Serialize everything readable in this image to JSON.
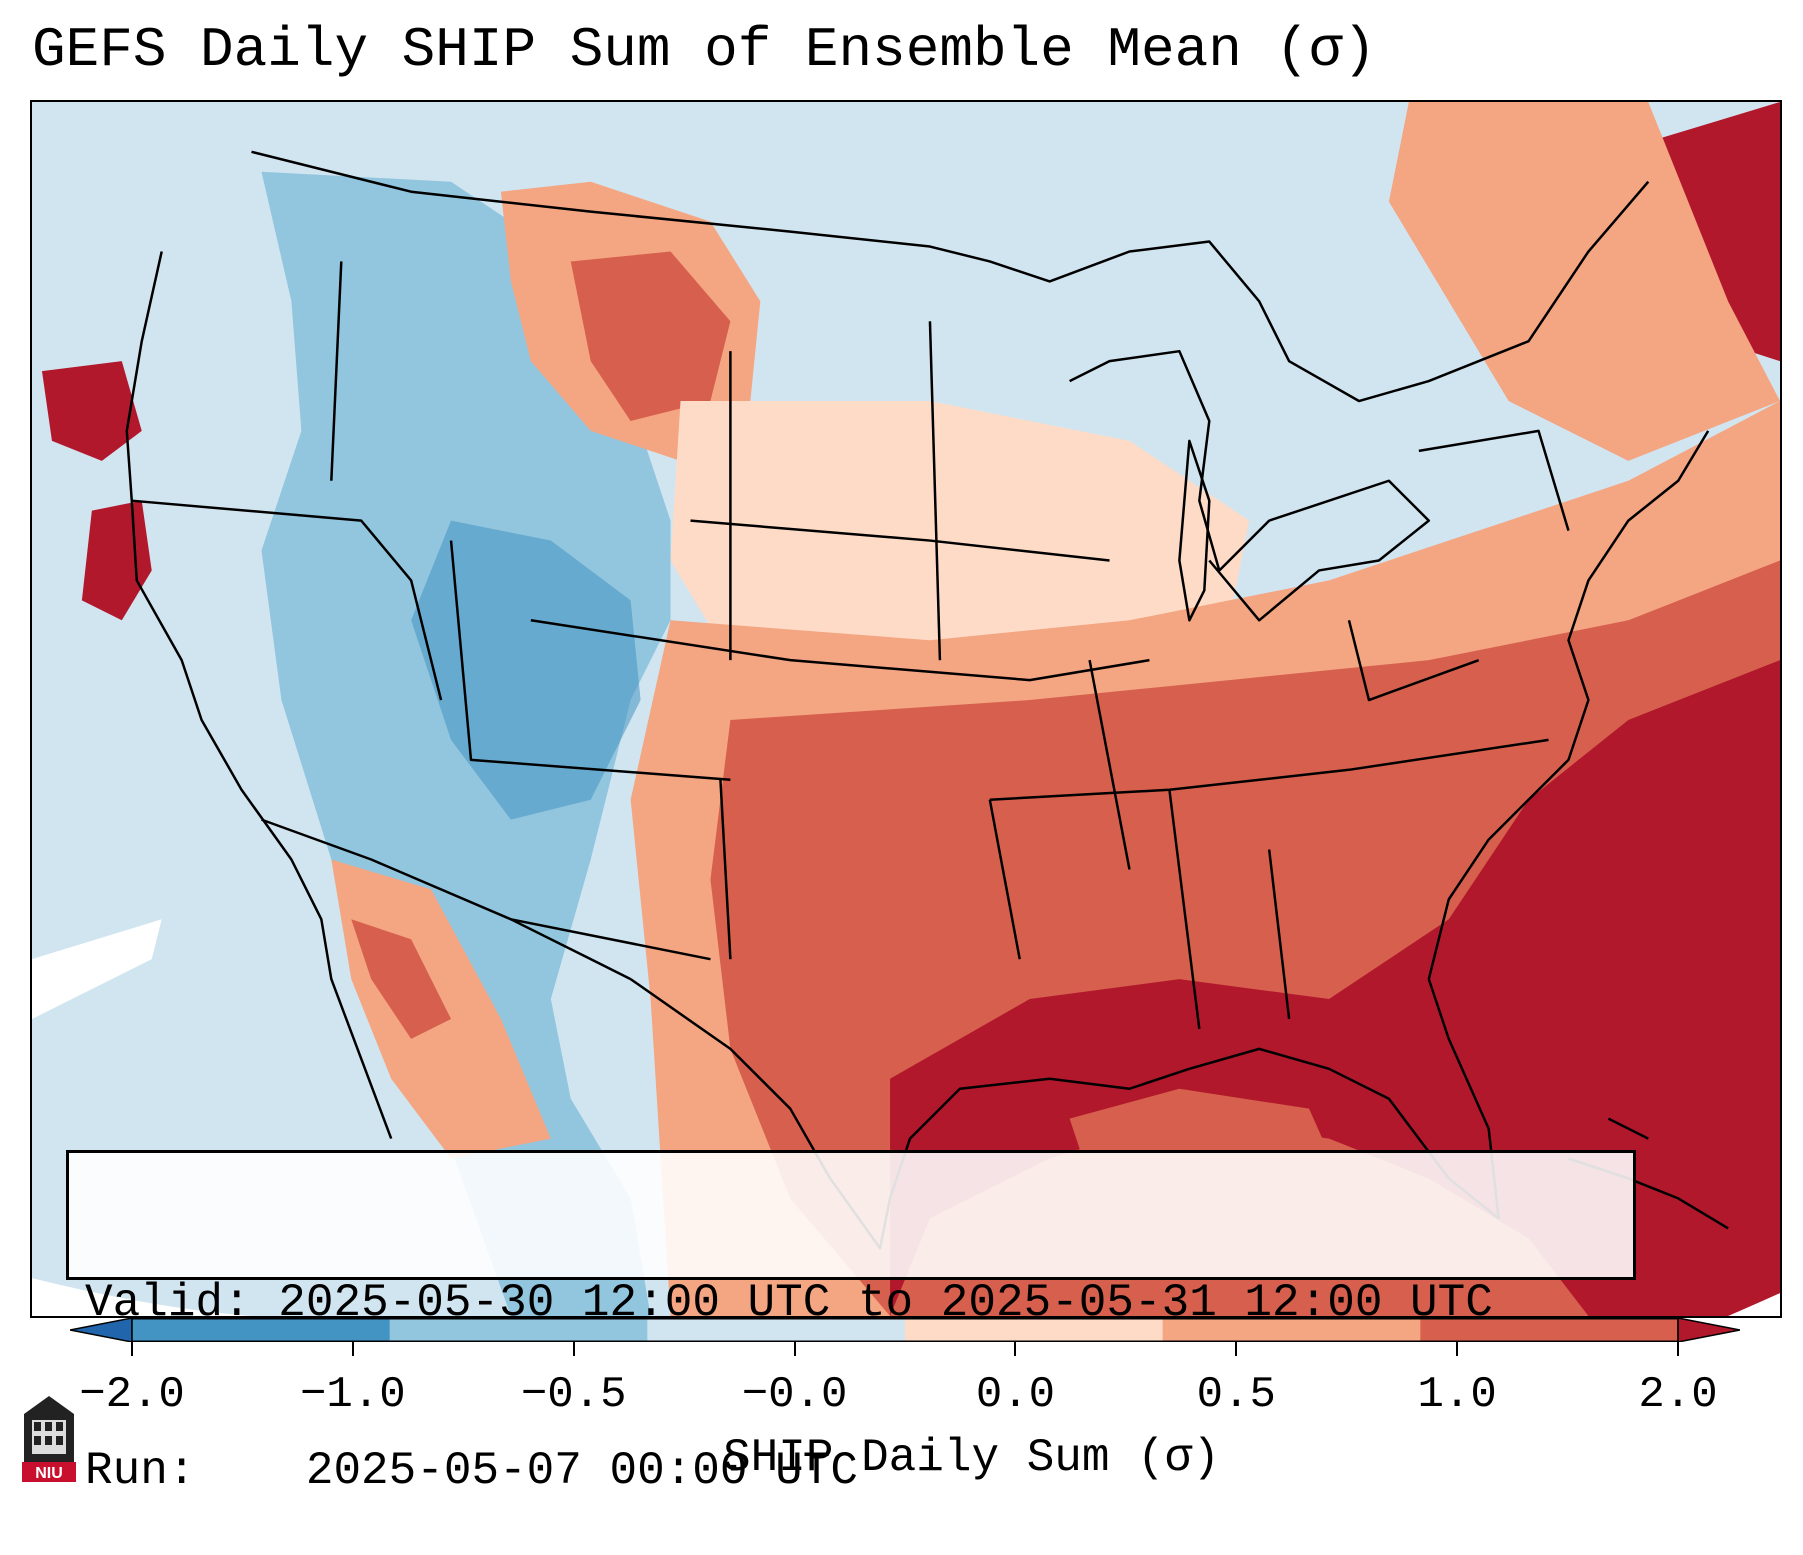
{
  "title": "GEFS Daily SHIP Sum of Ensemble Mean (σ)",
  "info": {
    "valid_label": "Valid:",
    "valid_value": "2025-05-30 12:00 UTC to 2025-05-31 12:00 UTC",
    "run_label": "Run:",
    "run_value": "2025-05-07 00:00 UTC"
  },
  "colorbar": {
    "label": "SHIP Daily Sum (σ)",
    "ticks": [
      "−2.0",
      "−1.0",
      "−0.5",
      "−0.0",
      "0.0",
      "0.5",
      "1.0",
      "2.0"
    ],
    "colors": [
      "#2166ac",
      "#4393c3",
      "#92c5de",
      "#d1e5f0",
      "#fddbc7",
      "#f4a582",
      "#d6604d",
      "#b2182b"
    ],
    "extend": "both"
  },
  "logo": {
    "text": "NIU",
    "icon": "niu-logo-icon"
  },
  "map": {
    "projection": "lambert-conformal",
    "region": "contiguous-united-states",
    "colors": {
      "ocean_low": "#d1e5f0",
      "neg_light": "#92c5de",
      "neg_mid": "#4393c3",
      "pos_light": "#fddbc7",
      "pos_mid": "#f4a582",
      "pos_high": "#d6604d",
      "pos_max": "#b2182b",
      "border": "#000000"
    }
  }
}
